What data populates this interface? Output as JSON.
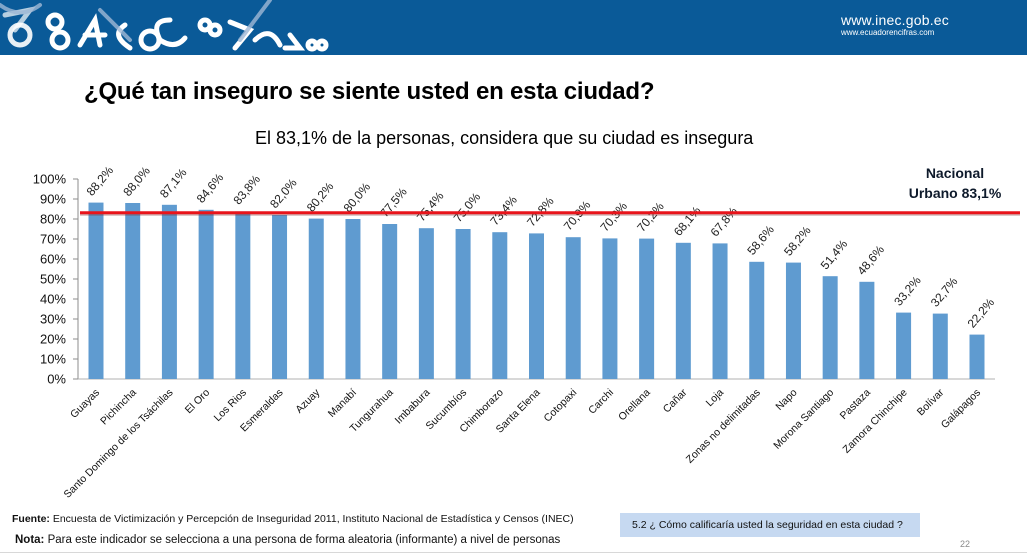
{
  "header": {
    "url_primary": "www.inec.gob.ec",
    "url_secondary": "www.ecuadorencifras.com",
    "background_color": "#0a5a98"
  },
  "title": "¿Qué tan inseguro se siente usted en esta ciudad?",
  "subtitle": "El 83,1% de la personas, considera que su ciudad es insegura",
  "reference_label_line1": "Nacional",
  "reference_label_line2": "Urbano 83,1%",
  "footer": {
    "fuente_label": "Fuente:",
    "fuente_text": " Encuesta de Victimización y Percepción de Inseguridad 2011, Instituto Nacional de Estadística y Censos (INEC)",
    "nota_label": "Nota:",
    "nota_text": " Para este indicador se selecciona a una persona  de forma aleatoria (informante)  a nivel de personas",
    "question": "5.2 ¿ Cómo calificaría usted la seguridad en esta ciudad ?",
    "page_number": "22"
  },
  "chart_data": {
    "type": "bar",
    "title": "",
    "xlabel": "",
    "ylabel": "",
    "ylim": [
      0,
      100
    ],
    "yticks": [
      "0%",
      "10%",
      "20%",
      "30%",
      "40%",
      "50%",
      "60%",
      "70%",
      "80%",
      "90%",
      "100%"
    ],
    "categories": [
      "Guayas",
      "Pichincha",
      "Santo Domingo de los Tsáchilas",
      "El Oro",
      "Los Rios",
      "Esmeraldas",
      "Azuay",
      "Manabí",
      "Tungurahua",
      "Imbabura",
      "Sucumbíos",
      "Chimborazo",
      "Santa Elena",
      "Cotopaxi",
      "Carchi",
      "Orellana",
      "Cañar",
      "Loja",
      "Zonas no delimitadas",
      "Napo",
      "Morona Santiago",
      "Pastaza",
      "Zamora Chinchipe",
      "Bolívar",
      "Galápagos"
    ],
    "values": [
      88.2,
      88.0,
      87.1,
      84.6,
      83.8,
      82.0,
      80.2,
      80.0,
      77.5,
      75.4,
      75.0,
      73.4,
      72.8,
      70.9,
      70.3,
      70.2,
      68.1,
      67.8,
      58.6,
      58.2,
      51.4,
      48.6,
      33.2,
      32.7,
      22.2
    ],
    "data_labels": [
      "88,2%",
      "88,0%",
      "87,1%",
      "84,6%",
      "83,8%",
      "82,0%",
      "80,2%",
      "80,0%",
      "77,5%",
      "75,4%",
      "75,0%",
      "73,4%",
      "72,8%",
      "70,9%",
      "70,3%",
      "70,2%",
      "68,1%",
      "67,8%",
      "58,6%",
      "58,2%",
      "51,4%",
      "48,6%",
      "33,2%",
      "32,7%",
      "22,2%"
    ],
    "bar_color": "#5f9bd0",
    "reference_line": {
      "value": 83.1,
      "label": "Nacional Urbano 83,1%",
      "color": "#e8141b"
    },
    "grid": false,
    "legend": "none"
  }
}
